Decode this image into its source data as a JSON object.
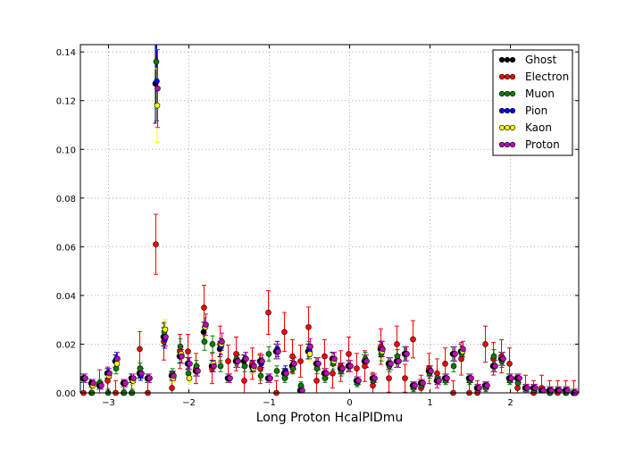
{
  "chart_data": {
    "type": "scatter",
    "title": "",
    "xlabel": "Long Proton HcalPIDmu",
    "ylabel": "",
    "xlim": [
      -3.35,
      2.85
    ],
    "ylim": [
      0.0,
      0.143
    ],
    "xticks": [
      -3,
      -2,
      -1,
      0,
      1,
      2
    ],
    "xtick_labels": [
      "−3",
      "−2",
      "−1",
      "0",
      "1",
      "2"
    ],
    "yticks": [
      0.0,
      0.02,
      0.04,
      0.06,
      0.08,
      0.1,
      0.12,
      0.14
    ],
    "ytick_labels": [
      "0.00",
      "0.02",
      "0.04",
      "0.06",
      "0.08",
      "0.10",
      "0.12",
      "0.14"
    ],
    "grid": true,
    "legend_position": "top-right",
    "x": [
      -3.3,
      -3.2,
      -3.1,
      -3.0,
      -2.9,
      -2.8,
      -2.7,
      -2.6,
      -2.5,
      -2.4,
      -2.3,
      -2.2,
      -2.1,
      -2.0,
      -1.9,
      -1.8,
      -1.7,
      -1.6,
      -1.5,
      -1.4,
      -1.3,
      -1.2,
      -1.1,
      -1.0,
      -0.9,
      -0.8,
      -0.7,
      -0.6,
      -0.5,
      -0.4,
      -0.3,
      -0.2,
      -0.1,
      0.0,
      0.1,
      0.2,
      0.3,
      0.4,
      0.5,
      0.6,
      0.7,
      0.8,
      0.9,
      1.0,
      1.1,
      1.2,
      1.3,
      1.4,
      1.5,
      1.6,
      1.7,
      1.8,
      1.9,
      2.0,
      2.1,
      2.2,
      2.3,
      2.4,
      2.5,
      2.6,
      2.7,
      2.8
    ],
    "series": [
      {
        "name": "Ghost",
        "color": "#000000",
        "values": [
          0.006,
          0.004,
          0.003,
          0.008,
          0.013,
          0.004,
          0.006,
          0.008,
          0.006,
          0.127,
          0.023,
          0.007,
          0.015,
          0.012,
          0.009,
          0.025,
          0.011,
          0.018,
          0.006,
          0.013,
          0.013,
          0.011,
          0.013,
          0.006,
          0.017,
          0.008,
          0.011,
          0.001,
          0.017,
          0.012,
          0.008,
          0.014,
          0.01,
          0.011,
          0.005,
          0.013,
          0.006,
          0.018,
          0.012,
          0.013,
          0.016,
          0.003,
          0.004,
          0.009,
          0.005,
          0.006,
          0.016,
          0.017,
          0.006,
          0.002,
          0.003,
          0.011,
          0.014,
          0.006,
          0.006,
          0.002,
          0.002,
          0.001,
          0.001,
          0.001,
          0.001,
          0.0
        ]
      },
      {
        "name": "Electron",
        "color": "#ff0000",
        "values": [
          0.0,
          0.0,
          0.004,
          0.005,
          0.0,
          0.0,
          0.0,
          0.018,
          0.0,
          0.061,
          0.021,
          0.002,
          0.017,
          0.017,
          0.01,
          0.035,
          0.01,
          0.02,
          0.013,
          0.016,
          0.005,
          0.012,
          0.01,
          0.033,
          0.0,
          0.025,
          0.015,
          0.013,
          0.027,
          0.005,
          0.015,
          0.008,
          0.011,
          0.016,
          0.01,
          0.011,
          0.003,
          0.019,
          0.006,
          0.02,
          0.006,
          0.022,
          0.002,
          0.01,
          0.008,
          0.012,
          0.0,
          0.014,
          0.0,
          0.0,
          0.02,
          0.014,
          0.015,
          0.012,
          0.002,
          0.002,
          0.0,
          0.002,
          0.0,
          0.0,
          0.0,
          0.0
        ]
      },
      {
        "name": "Muon",
        "color": "#008000",
        "values": [
          0.006,
          0.0,
          0.004,
          0.0,
          0.01,
          0.0,
          0.0,
          0.01,
          0.006,
          0.136,
          0.025,
          0.008,
          0.019,
          0.008,
          0.011,
          0.021,
          0.02,
          0.011,
          0.006,
          0.014,
          0.011,
          0.01,
          0.007,
          0.016,
          0.009,
          0.006,
          0.01,
          0.003,
          0.018,
          0.01,
          0.006,
          0.012,
          0.009,
          0.011,
          0.004,
          0.014,
          0.005,
          0.016,
          0.011,
          0.015,
          0.016,
          0.002,
          0.003,
          0.008,
          0.006,
          0.005,
          0.011,
          0.016,
          0.005,
          0.002,
          0.002,
          0.015,
          0.013,
          0.005,
          0.004,
          0.002,
          0.001,
          0.001,
          0.0,
          0.001,
          0.0,
          0.0
        ]
      },
      {
        "name": "Pion",
        "color": "#0000ff",
        "values": [
          0.006,
          0.003,
          0.003,
          0.008,
          0.014,
          0.004,
          0.005,
          0.007,
          0.006,
          0.128,
          0.022,
          0.007,
          0.015,
          0.012,
          0.009,
          0.027,
          0.011,
          0.019,
          0.006,
          0.013,
          0.014,
          0.011,
          0.012,
          0.006,
          0.018,
          0.009,
          0.012,
          0.001,
          0.017,
          0.012,
          0.008,
          0.014,
          0.01,
          0.011,
          0.005,
          0.013,
          0.006,
          0.018,
          0.012,
          0.013,
          0.016,
          0.003,
          0.004,
          0.009,
          0.005,
          0.006,
          0.016,
          0.017,
          0.006,
          0.002,
          0.003,
          0.011,
          0.014,
          0.006,
          0.006,
          0.002,
          0.002,
          0.001,
          0.001,
          0.001,
          0.001,
          0.0
        ]
      },
      {
        "name": "Kaon",
        "color": "#ffff00",
        "values": [
          0.006,
          0.003,
          0.003,
          0.007,
          0.012,
          0.004,
          0.005,
          0.008,
          0.006,
          0.118,
          0.026,
          0.006,
          0.016,
          0.006,
          0.009,
          0.027,
          0.012,
          0.02,
          0.006,
          0.013,
          0.014,
          0.01,
          0.013,
          0.006,
          0.017,
          0.008,
          0.012,
          0.001,
          0.016,
          0.012,
          0.008,
          0.013,
          0.01,
          0.011,
          0.005,
          0.013,
          0.006,
          0.017,
          0.012,
          0.013,
          0.016,
          0.003,
          0.004,
          0.009,
          0.005,
          0.006,
          0.016,
          0.017,
          0.006,
          0.002,
          0.003,
          0.011,
          0.014,
          0.006,
          0.006,
          0.002,
          0.002,
          0.001,
          0.001,
          0.001,
          0.001,
          0.0
        ]
      },
      {
        "name": "Proton",
        "color": "#bf00bf",
        "values": [
          0.006,
          0.004,
          0.003,
          0.008,
          0.014,
          0.004,
          0.006,
          0.008,
          0.006,
          0.125,
          0.023,
          0.007,
          0.015,
          0.012,
          0.009,
          0.028,
          0.011,
          0.021,
          0.006,
          0.013,
          0.014,
          0.011,
          0.013,
          0.006,
          0.017,
          0.008,
          0.012,
          0.001,
          0.019,
          0.012,
          0.008,
          0.014,
          0.01,
          0.011,
          0.005,
          0.013,
          0.006,
          0.018,
          0.012,
          0.013,
          0.016,
          0.003,
          0.004,
          0.009,
          0.005,
          0.006,
          0.016,
          0.018,
          0.006,
          0.002,
          0.003,
          0.011,
          0.014,
          0.006,
          0.006,
          0.002,
          0.002,
          0.001,
          0.001,
          0.001,
          0.001,
          0.0
        ]
      }
    ]
  }
}
